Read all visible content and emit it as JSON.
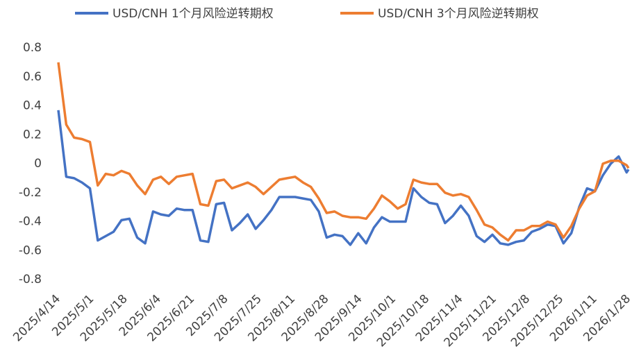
{
  "chart_data": {
    "type": "line",
    "x": [
      "2025/4/14",
      "2025/4/18",
      "2025/4/22",
      "2025/4/26",
      "2025/4/30",
      "2025/5/4",
      "2025/5/8",
      "2025/5/12",
      "2025/5/16",
      "2025/5/20",
      "2025/5/24",
      "2025/5/28",
      "2025/6/1",
      "2025/6/5",
      "2025/6/9",
      "2025/6/13",
      "2025/6/17",
      "2025/6/21",
      "2025/6/25",
      "2025/6/29",
      "2025/7/3",
      "2025/7/7",
      "2025/7/11",
      "2025/7/15",
      "2025/7/19",
      "2025/7/23",
      "2025/7/27",
      "2025/7/31",
      "2025/8/4",
      "2025/8/8",
      "2025/8/12",
      "2025/8/16",
      "2025/8/20",
      "2025/8/24",
      "2025/8/28",
      "2025/9/1",
      "2025/9/5",
      "2025/9/9",
      "2025/9/13",
      "2025/9/17",
      "2025/9/21",
      "2025/9/25",
      "2025/9/29",
      "2025/10/3",
      "2025/10/7",
      "2025/10/11",
      "2025/10/15",
      "2025/10/19",
      "2025/10/23",
      "2025/10/27",
      "2025/10/31",
      "2025/11/4",
      "2025/11/8",
      "2025/11/12",
      "2025/11/16",
      "2025/11/20",
      "2025/11/24",
      "2025/11/28",
      "2025/12/2",
      "2025/12/6",
      "2025/12/10",
      "2025/12/14",
      "2025/12/18",
      "2025/12/22",
      "2025/12/26",
      "2025/12/30",
      "2026/1/3",
      "2026/1/7",
      "2026/1/11",
      "2026/1/15",
      "2026/1/19",
      "2026/1/23",
      "2026/1/27",
      "2026/1/28"
    ],
    "series": [
      {
        "name": "USD/CNH 1个月风险逆转期权",
        "color": "#4472c4",
        "values": [
          0.37,
          -0.09,
          -0.1,
          -0.13,
          -0.17,
          -0.53,
          -0.5,
          -0.47,
          -0.39,
          -0.38,
          -0.51,
          -0.55,
          -0.33,
          -0.35,
          -0.36,
          -0.31,
          -0.32,
          -0.32,
          -0.53,
          -0.54,
          -0.28,
          -0.27,
          -0.46,
          -0.41,
          -0.35,
          -0.45,
          -0.39,
          -0.32,
          -0.23,
          -0.23,
          -0.23,
          -0.24,
          -0.25,
          -0.33,
          -0.51,
          -0.49,
          -0.5,
          -0.56,
          -0.48,
          -0.55,
          -0.44,
          -0.37,
          -0.4,
          -0.4,
          -0.4,
          -0.17,
          -0.23,
          -0.27,
          -0.28,
          -0.41,
          -0.36,
          -0.29,
          -0.36,
          -0.5,
          -0.54,
          -0.49,
          -0.55,
          -0.56,
          -0.54,
          -0.53,
          -0.47,
          -0.45,
          -0.42,
          -0.43,
          -0.55,
          -0.48,
          -0.3,
          -0.17,
          -0.19,
          -0.08,
          0.0,
          0.05,
          -0.06,
          -0.04
        ]
      },
      {
        "name": "USD/CNH 3个月风险逆转期权",
        "color": "#ed7d31",
        "values": [
          0.7,
          0.27,
          0.18,
          0.17,
          0.15,
          -0.15,
          -0.07,
          -0.08,
          -0.05,
          -0.07,
          -0.15,
          -0.21,
          -0.11,
          -0.09,
          -0.14,
          -0.09,
          -0.08,
          -0.07,
          -0.28,
          -0.29,
          -0.12,
          -0.11,
          -0.17,
          -0.15,
          -0.13,
          -0.16,
          -0.21,
          -0.16,
          -0.11,
          -0.1,
          -0.09,
          -0.13,
          -0.16,
          -0.24,
          -0.34,
          -0.33,
          -0.36,
          -0.37,
          -0.37,
          -0.38,
          -0.31,
          -0.22,
          -0.26,
          -0.31,
          -0.28,
          -0.11,
          -0.13,
          -0.14,
          -0.14,
          -0.2,
          -0.22,
          -0.21,
          -0.23,
          -0.32,
          -0.42,
          -0.44,
          -0.49,
          -0.53,
          -0.46,
          -0.46,
          -0.43,
          -0.43,
          -0.4,
          -0.42,
          -0.51,
          -0.43,
          -0.31,
          -0.22,
          -0.19,
          0.0,
          0.02,
          0.02,
          -0.01,
          -0.03
        ]
      }
    ],
    "xlim": [
      "2025/4/14",
      "2026/1/28"
    ],
    "xticks": [
      "2025/4/14",
      "2025/5/1",
      "2025/5/18",
      "2025/6/4",
      "2025/6/21",
      "2025/7/8",
      "2025/7/25",
      "2025/8/11",
      "2025/8/28",
      "2025/9/14",
      "2025/10/1",
      "2025/10/18",
      "2025/11/4",
      "2025/11/21",
      "2025/12/8",
      "2025/12/25",
      "2026/1/11",
      "2026/1/28"
    ],
    "ylim": [
      -0.8,
      0.8
    ],
    "yticks": [
      0.8,
      0.6,
      0.4,
      0.2,
      0,
      -0.2,
      -0.4,
      -0.6,
      -0.8
    ],
    "legend": "top"
  }
}
